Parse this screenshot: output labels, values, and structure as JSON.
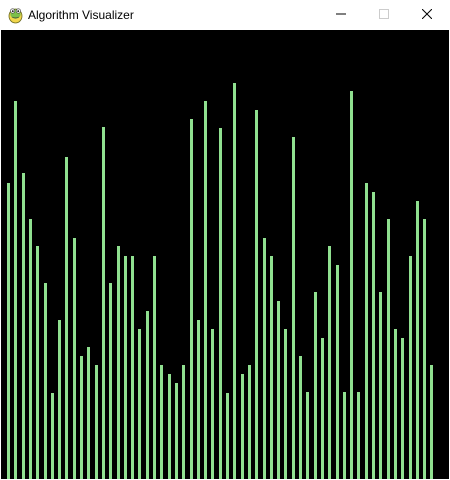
{
  "window": {
    "title": "Algorithm Visualizer",
    "app_icon": "python-icon",
    "controls": {
      "minimize_icon": "minimize-icon",
      "maximize_icon": "maximize-icon",
      "close_icon": "close-icon"
    }
  },
  "colors": {
    "bar": "#90e090",
    "background": "#000000"
  },
  "bars": {
    "max_value": 449,
    "values": [
      296,
      378,
      306,
      260,
      233,
      196,
      86,
      159,
      322,
      241,
      123,
      132,
      114,
      352,
      196,
      233,
      223,
      223,
      150,
      168,
      223,
      114,
      105,
      96,
      114,
      360,
      159,
      378,
      150,
      351,
      86,
      396,
      105,
      114,
      369,
      241,
      223,
      178,
      150,
      342,
      123,
      87,
      187,
      141,
      233,
      214,
      87,
      388,
      87,
      296,
      287,
      187,
      260,
      150,
      141,
      223,
      278,
      260,
      114
    ]
  }
}
